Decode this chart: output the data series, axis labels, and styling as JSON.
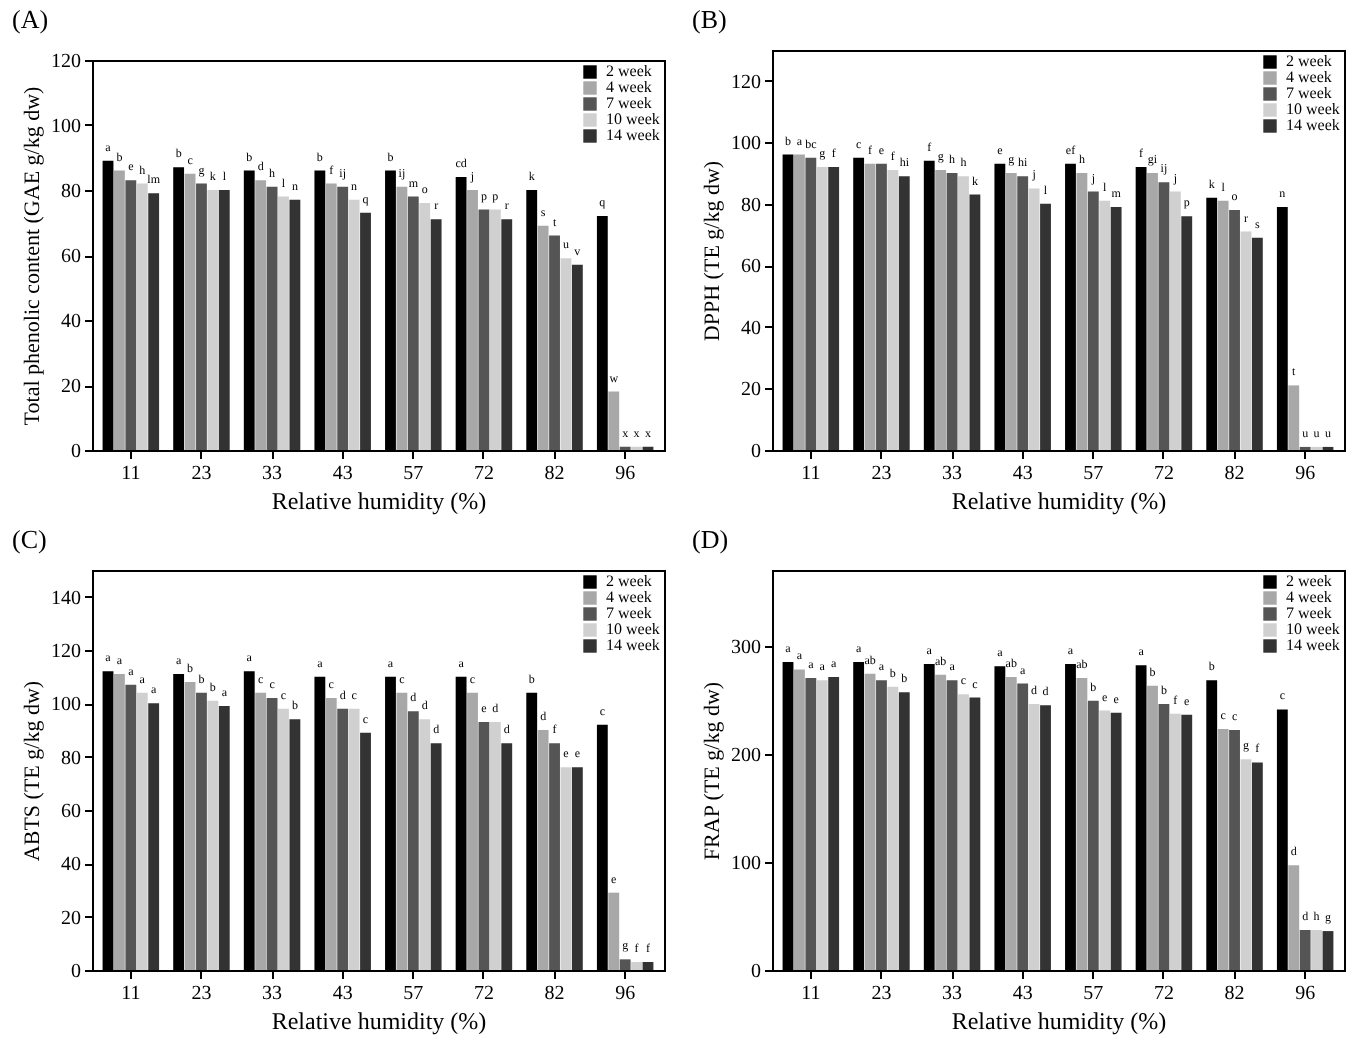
{
  "chart_data": [
    {
      "type": "bar",
      "title": "(A)",
      "xlabel": "Relative humidity (%)",
      "ylabel": "Total phenolic content (GAE g/kg dw)",
      "categories": [
        "11",
        "23",
        "33",
        "43",
        "57",
        "72",
        "82",
        "96"
      ],
      "ylim": [
        0,
        120
      ],
      "yticks": [
        0,
        20,
        40,
        60,
        80,
        100,
        120
      ],
      "grid": false,
      "legend": "top right",
      "series": [
        {
          "name": "2 week",
          "color": "#000000",
          "values": [
            89,
            87,
            86,
            86,
            86,
            84,
            80,
            72
          ],
          "value_labels": [
            "a",
            "b",
            "b",
            "b",
            "b",
            "cd",
            "k",
            "q"
          ]
        },
        {
          "name": "4 week",
          "color": "#a8a8a8",
          "values": [
            86,
            85,
            83,
            82,
            81,
            80,
            69,
            18
          ],
          "value_labels": [
            "b",
            "c",
            "d",
            "f",
            "ij",
            "j",
            "s",
            "w"
          ]
        },
        {
          "name": "7 week",
          "color": "#555555",
          "values": [
            83,
            82,
            81,
            81,
            78,
            74,
            66,
            1
          ],
          "value_labels": [
            "e",
            "g",
            "h",
            "ij",
            "m",
            "p",
            "t",
            "x"
          ]
        },
        {
          "name": "10 week",
          "color": "#d0d0d0",
          "values": [
            82,
            80,
            78,
            77,
            76,
            74,
            59,
            1
          ],
          "value_labels": [
            "h",
            "k",
            "l",
            "n",
            "o",
            "p",
            "u",
            "x"
          ]
        },
        {
          "name": "14 week",
          "color": "#333333",
          "values": [
            79,
            80,
            77,
            73,
            71,
            71,
            57,
            1
          ],
          "value_labels": [
            "lm",
            "l",
            "n",
            "q",
            "r",
            "r",
            "v",
            "x"
          ]
        }
      ]
    },
    {
      "type": "bar",
      "title": "(B)",
      "xlabel": "Relative humidity (%)",
      "ylabel": "DPPH (TE g/kg dw)",
      "categories": [
        "11",
        "23",
        "33",
        "43",
        "57",
        "72",
        "82",
        "96"
      ],
      "ylim": [
        0,
        130
      ],
      "yticks": [
        0,
        20,
        40,
        60,
        80,
        100,
        120
      ],
      "grid": false,
      "legend": "top right",
      "series": [
        {
          "name": "2 week",
          "color": "#000000",
          "values": [
            96,
            95,
            94,
            93,
            93,
            92,
            82,
            79
          ],
          "value_labels": [
            "b",
            "c",
            "f",
            "e",
            "ef",
            "f",
            "k",
            "n"
          ]
        },
        {
          "name": "4 week",
          "color": "#a8a8a8",
          "values": [
            96,
            93,
            91,
            90,
            90,
            90,
            81,
            21
          ],
          "value_labels": [
            "a",
            "f",
            "g",
            "g",
            "h",
            "gi",
            "l",
            "t"
          ]
        },
        {
          "name": "7 week",
          "color": "#555555",
          "values": [
            95,
            93,
            90,
            89,
            84,
            87,
            78,
            1
          ],
          "value_labels": [
            "bc",
            "e",
            "h",
            "hi",
            "j",
            "ij",
            "o",
            "u"
          ]
        },
        {
          "name": "10 week",
          "color": "#d0d0d0",
          "values": [
            92,
            91,
            89,
            85,
            81,
            84,
            71,
            1
          ],
          "value_labels": [
            "g",
            "f",
            "h",
            "j",
            "l",
            "j",
            "r",
            "u"
          ]
        },
        {
          "name": "14 week",
          "color": "#333333",
          "values": [
            92,
            89,
            83,
            80,
            79,
            76,
            69,
            1
          ],
          "value_labels": [
            "f",
            "hi",
            "k",
            "l",
            "m",
            "p",
            "s",
            "u"
          ]
        }
      ]
    },
    {
      "type": "bar",
      "title": "(C)",
      "xlabel": "Relative humidity (%)",
      "ylabel": "ABTS (TE g/kg dw)",
      "categories": [
        "11",
        "23",
        "33",
        "43",
        "57",
        "72",
        "82",
        "96"
      ],
      "ylim": [
        0,
        150
      ],
      "yticks": [
        0,
        20,
        40,
        60,
        80,
        100,
        120,
        140
      ],
      "grid": false,
      "legend": "top right",
      "series": [
        {
          "name": "2 week",
          "color": "#000000",
          "values": [
            112,
            111,
            112,
            110,
            110,
            110,
            104,
            92
          ],
          "value_labels": [
            "a",
            "a",
            "a",
            "a",
            "a",
            "a",
            "b",
            "c"
          ]
        },
        {
          "name": "4 week",
          "color": "#a8a8a8",
          "values": [
            111,
            108,
            104,
            102,
            104,
            104,
            90,
            29
          ],
          "value_labels": [
            "a",
            "b",
            "c",
            "c",
            "c",
            "c",
            "d",
            "e"
          ]
        },
        {
          "name": "7 week",
          "color": "#555555",
          "values": [
            107,
            104,
            102,
            98,
            97,
            93,
            85,
            4
          ],
          "value_labels": [
            "a",
            "b",
            "c",
            "d",
            "d",
            "e",
            "f",
            "g"
          ]
        },
        {
          "name": "10 week",
          "color": "#d0d0d0",
          "values": [
            104,
            101,
            98,
            98,
            94,
            93,
            76,
            3
          ],
          "value_labels": [
            "a",
            "b",
            "c",
            "c",
            "d",
            "d",
            "e",
            "f"
          ]
        },
        {
          "name": "14 week",
          "color": "#333333",
          "values": [
            100,
            99,
            94,
            89,
            85,
            85,
            76,
            3
          ],
          "value_labels": [
            "a",
            "a",
            "b",
            "c",
            "d",
            "d",
            "e",
            "f"
          ]
        }
      ]
    },
    {
      "type": "bar",
      "title": "(D)",
      "xlabel": "Relative humidity (%)",
      "ylabel": "FRAP (TE g/kg dw)",
      "categories": [
        "11",
        "23",
        "33",
        "43",
        "57",
        "72",
        "82",
        "96"
      ],
      "ylim": [
        0,
        370
      ],
      "yticks": [
        0,
        100,
        200,
        300
      ],
      "grid": false,
      "legend": "top right",
      "series": [
        {
          "name": "2 week",
          "color": "#000000",
          "values": [
            285,
            285,
            283,
            281,
            283,
            282,
            268,
            241
          ],
          "value_labels": [
            "a",
            "a",
            "a",
            "a",
            "a",
            "a",
            "b",
            "c"
          ]
        },
        {
          "name": "4 week",
          "color": "#a8a8a8",
          "values": [
            278,
            274,
            273,
            271,
            270,
            263,
            223,
            97
          ],
          "value_labels": [
            "a",
            "ab",
            "ab",
            "ab",
            "ab",
            "b",
            "c",
            "d"
          ]
        },
        {
          "name": "7 week",
          "color": "#555555",
          "values": [
            270,
            268,
            268,
            265,
            249,
            246,
            222,
            37
          ],
          "value_labels": [
            "a",
            "a",
            "a",
            "a",
            "b",
            "b",
            "c",
            "d"
          ]
        },
        {
          "name": "10 week",
          "color": "#d0d0d0",
          "values": [
            268,
            262,
            255,
            246,
            240,
            237,
            195,
            37
          ],
          "value_labels": [
            "a",
            "b",
            "c",
            "d",
            "e",
            "f",
            "g",
            "h"
          ]
        },
        {
          "name": "14 week",
          "color": "#333333",
          "values": [
            271,
            257,
            252,
            245,
            238,
            236,
            192,
            36
          ],
          "value_labels": [
            "a",
            "b",
            "c",
            "d",
            "e",
            "e",
            "f",
            "g"
          ]
        }
      ]
    }
  ]
}
